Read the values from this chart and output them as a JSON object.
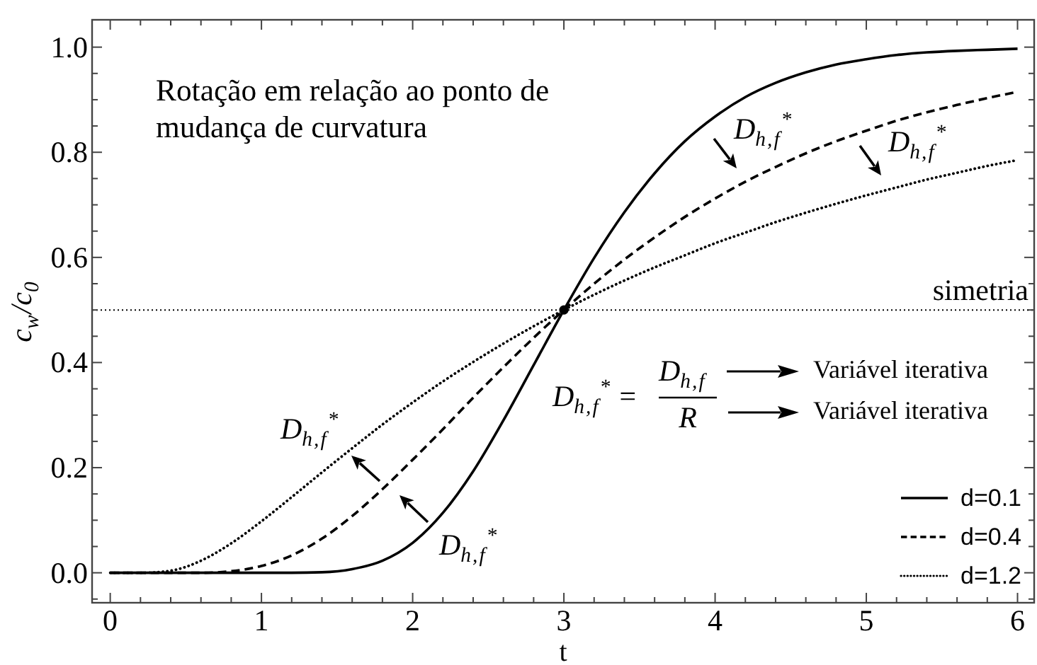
{
  "chart_data": {
    "type": "line",
    "xlabel": "t",
    "ylabel": "c$_{w}$/c$_{0}$",
    "x": [
      0,
      0.2,
      0.4,
      0.6,
      0.8,
      1,
      1.2,
      1.4,
      1.6,
      1.8,
      2,
      2.2,
      2.4,
      2.6,
      2.8,
      3,
      3.2,
      3.4,
      3.6,
      3.8,
      4,
      4.2,
      4.4,
      4.6,
      4.8,
      5,
      5.2,
      5.4,
      5.6,
      5.8,
      6
    ],
    "series": [
      {
        "name": "d=0.1",
        "color": "#000000",
        "line_style": "solid",
        "values": [
          0,
          0,
          0,
          0,
          0,
          0,
          0,
          0.001,
          0.007,
          0.023,
          0.057,
          0.114,
          0.193,
          0.29,
          0.395,
          0.5,
          0.599,
          0.686,
          0.76,
          0.821,
          0.868,
          0.905,
          0.932,
          0.952,
          0.967,
          0.977,
          0.985,
          0.99,
          0.993,
          0.995,
          0.997
        ]
      },
      {
        "name": "d=0.4",
        "color": "#000000",
        "line_style": "dashed",
        "values": [
          0,
          0,
          0,
          0,
          0.003,
          0.013,
          0.033,
          0.065,
          0.108,
          0.159,
          0.215,
          0.273,
          0.333,
          0.391,
          0.447,
          0.5,
          0.55,
          0.596,
          0.638,
          0.677,
          0.712,
          0.744,
          0.772,
          0.798,
          0.821,
          0.841,
          0.86,
          0.876,
          0.89,
          0.903,
          0.915
        ]
      },
      {
        "name": "d=1.2",
        "color": "#000000",
        "line_style": "dotted",
        "values": [
          0,
          0,
          0.004,
          0.023,
          0.056,
          0.098,
          0.144,
          0.191,
          0.237,
          0.282,
          0.324,
          0.364,
          0.401,
          0.436,
          0.469,
          0.5,
          0.529,
          0.556,
          0.581,
          0.604,
          0.627,
          0.647,
          0.667,
          0.685,
          0.702,
          0.718,
          0.733,
          0.748,
          0.761,
          0.774,
          0.785
        ]
      },
      {
        "type": "scatter",
        "color": "#000000",
        "marker": "circle",
        "x": [
          3
        ],
        "values": [
          0.5
        ]
      }
    ],
    "xlim": [
      -0.12,
      6.11
    ],
    "ylim": [
      -0.057,
      1.052
    ],
    "xticks": [
      0,
      {
        "value": 0.2,
        "label": null
      },
      {
        "value": 0.4,
        "label": null
      },
      {
        "value": 0.6,
        "label": null
      },
      {
        "value": 0.8,
        "label": null
      },
      1,
      {
        "value": 1.2,
        "label": null
      },
      {
        "value": 1.4,
        "label": null
      },
      {
        "value": 1.6,
        "label": null
      },
      {
        "value": 1.8,
        "label": null
      },
      2,
      {
        "value": 2.2,
        "label": null
      },
      {
        "value": 2.4,
        "label": null
      },
      {
        "value": 2.6,
        "label": null
      },
      {
        "value": 2.8,
        "label": null
      },
      3,
      {
        "value": 3.2,
        "label": null
      },
      {
        "value": 3.4,
        "label": null
      },
      {
        "value": 3.6,
        "label": null
      },
      {
        "value": 3.8,
        "label": null
      },
      4,
      {
        "value": 4.2,
        "label": null
      },
      {
        "value": 4.4,
        "label": null
      },
      {
        "value": 4.6,
        "label": null
      },
      {
        "value": 4.8,
        "label": null
      },
      5,
      {
        "value": 5.2,
        "label": null
      },
      {
        "value": 5.4,
        "label": null
      },
      {
        "value": 5.6,
        "label": null
      },
      {
        "value": 5.8,
        "label": null
      },
      6
    ],
    "yticks": [
      {
        "value": -0.05,
        "label": null
      },
      {
        "value": 0,
        "label": "0.0"
      },
      {
        "value": 0.05,
        "label": null
      },
      {
        "value": 0.1,
        "label": null
      },
      {
        "value": 0.15,
        "label": null
      },
      0.2,
      {
        "value": 0.25,
        "label": null
      },
      {
        "value": 0.3,
        "label": null
      },
      {
        "value": 0.35,
        "label": null
      },
      0.4,
      {
        "value": 0.45,
        "label": null
      },
      {
        "value": 0.5,
        "label": null
      },
      {
        "value": 0.55,
        "label": null
      },
      0.6,
      {
        "value": 0.65,
        "label": null
      },
      {
        "value": 0.7,
        "label": null
      },
      {
        "value": 0.75,
        "label": null
      },
      0.8,
      {
        "value": 0.85,
        "label": null
      },
      {
        "value": 0.9,
        "label": null
      },
      {
        "value": 0.95,
        "label": null
      },
      {
        "value": 1,
        "label": "1.0"
      }
    ],
    "ref_lines": [
      {
        "axis": "y",
        "value": 0.5,
        "label": "simetria",
        "line_style": "dotted"
      }
    ],
    "annotations": [
      "Rotação em relação ao ponto de\nmudança de curvatura",
      "D$_{h,f}$$^{*}$ =",
      "D$_{h,f}$",
      "R",
      "Variável iterativa",
      "Variável iterativa",
      "D$_{h,f}$$^{*}$",
      "D$_{h,f}$$^{*}$",
      "D$_{h,f}$$^{*}$",
      "D$_{h,f}$$^{*}$"
    ],
    "legend": "bottom right"
  }
}
